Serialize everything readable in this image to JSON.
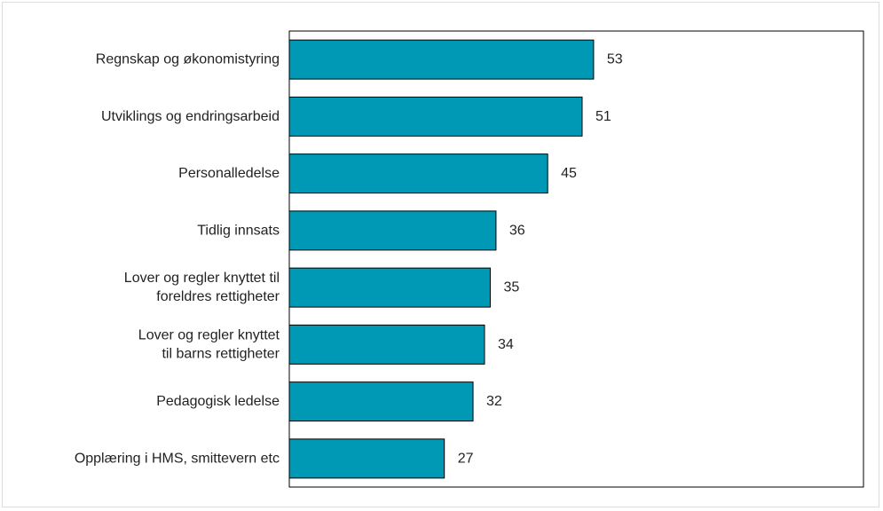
{
  "chart_data": {
    "type": "bar",
    "orientation": "horizontal",
    "title": "",
    "xlabel": "",
    "ylabel": "",
    "categories": [
      [
        "Regnskap og økonomistyring"
      ],
      [
        "Utviklings og endringsarbeid"
      ],
      [
        "Personalledelse"
      ],
      [
        "Tidlig innsats"
      ],
      [
        "Lover og regler knyttet til",
        "foreldres rettigheter"
      ],
      [
        "Lover og regler knyttet",
        "til barns rettigheter"
      ],
      [
        "Pedagogisk ledelse"
      ],
      [
        "Opplæring i HMS, smittevern etc"
      ]
    ],
    "values": [
      53,
      51,
      45,
      36,
      35,
      34,
      32,
      27
    ],
    "value_labels": [
      "53",
      "51",
      "45",
      "36",
      "35",
      "34",
      "32",
      "27"
    ],
    "xlim": [
      0,
      100
    ],
    "grid": false,
    "legend": "none",
    "bar_color": "#0099B5",
    "bar_border_color": "#000000"
  }
}
